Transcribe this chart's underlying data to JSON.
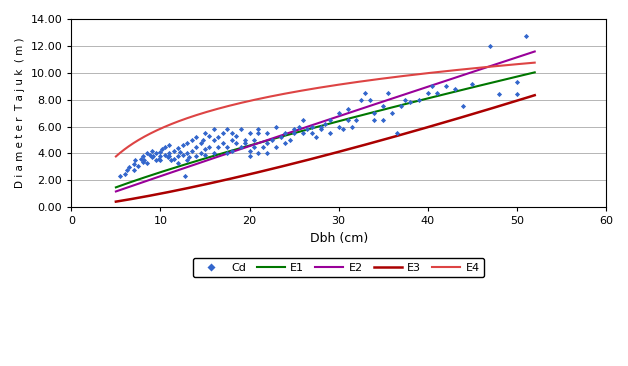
{
  "title": "",
  "xlabel": "Dbh (cm)",
  "ylabel": "D i a m e t e r  T a j u k  ( m )",
  "xlim": [
    0,
    60
  ],
  "ylim": [
    0,
    14
  ],
  "xticks": [
    0,
    10,
    20,
    30,
    40,
    50,
    60
  ],
  "yticks": [
    0.0,
    2.0,
    4.0,
    6.0,
    8.0,
    10.0,
    12.0,
    14.0
  ],
  "scatter_color": "#3366CC",
  "E1_color": "#007700",
  "E2_color": "#990099",
  "E3_color": "#AA0000",
  "E4_color": "#DD4444",
  "background_color": "#FFFFFF",
  "grid_color": "#AAAAAA",
  "scatter_data": [
    [
      5.5,
      2.3
    ],
    [
      6.0,
      2.5
    ],
    [
      6.2,
      2.8
    ],
    [
      6.5,
      3.0
    ],
    [
      7.0,
      3.2
    ],
    [
      7.0,
      2.8
    ],
    [
      7.2,
      3.5
    ],
    [
      7.5,
      3.1
    ],
    [
      7.8,
      3.6
    ],
    [
      8.0,
      3.4
    ],
    [
      8.0,
      3.8
    ],
    [
      8.2,
      3.5
    ],
    [
      8.5,
      3.3
    ],
    [
      8.5,
      4.0
    ],
    [
      8.8,
      3.9
    ],
    [
      9.0,
      3.7
    ],
    [
      9.0,
      4.2
    ],
    [
      9.2,
      3.8
    ],
    [
      9.5,
      4.0
    ],
    [
      9.5,
      3.5
    ],
    [
      9.8,
      3.6
    ],
    [
      10.0,
      3.5
    ],
    [
      10.0,
      4.1
    ],
    [
      10.0,
      3.8
    ],
    [
      10.2,
      4.3
    ],
    [
      10.5,
      3.9
    ],
    [
      10.5,
      4.5
    ],
    [
      10.8,
      3.7
    ],
    [
      11.0,
      3.8
    ],
    [
      11.0,
      4.6
    ],
    [
      11.0,
      4.0
    ],
    [
      11.2,
      3.5
    ],
    [
      11.5,
      4.2
    ],
    [
      11.5,
      3.6
    ],
    [
      12.0,
      3.8
    ],
    [
      12.0,
      4.4
    ],
    [
      12.0,
      3.3
    ],
    [
      12.2,
      4.1
    ],
    [
      12.5,
      3.9
    ],
    [
      12.5,
      4.6
    ],
    [
      12.8,
      2.3
    ],
    [
      13.0,
      4.0
    ],
    [
      13.0,
      3.5
    ],
    [
      13.0,
      4.8
    ],
    [
      13.2,
      3.7
    ],
    [
      13.5,
      4.2
    ],
    [
      13.5,
      5.0
    ],
    [
      14.0,
      3.8
    ],
    [
      14.0,
      4.5
    ],
    [
      14.0,
      5.2
    ],
    [
      14.5,
      4.0
    ],
    [
      14.5,
      4.8
    ],
    [
      14.8,
      5.0
    ],
    [
      15.0,
      4.3
    ],
    [
      15.0,
      5.5
    ],
    [
      15.0,
      3.9
    ],
    [
      15.5,
      4.5
    ],
    [
      15.5,
      5.3
    ],
    [
      16.0,
      4.0
    ],
    [
      16.0,
      5.0
    ],
    [
      16.0,
      5.8
    ],
    [
      16.5,
      4.5
    ],
    [
      16.5,
      5.2
    ],
    [
      17.0,
      4.8
    ],
    [
      17.0,
      5.5
    ],
    [
      17.5,
      4.0
    ],
    [
      17.5,
      5.8
    ],
    [
      17.5,
      4.5
    ],
    [
      18.0,
      4.2
    ],
    [
      18.0,
      5.0
    ],
    [
      18.0,
      5.5
    ],
    [
      18.5,
      4.8
    ],
    [
      18.5,
      5.3
    ],
    [
      19.0,
      4.5
    ],
    [
      19.0,
      5.8
    ],
    [
      19.5,
      5.0
    ],
    [
      19.5,
      4.8
    ],
    [
      20.0,
      4.2
    ],
    [
      20.0,
      5.5
    ],
    [
      20.0,
      3.8
    ],
    [
      20.5,
      4.5
    ],
    [
      20.5,
      5.0
    ],
    [
      21.0,
      4.0
    ],
    [
      21.0,
      5.5
    ],
    [
      21.0,
      5.8
    ],
    [
      21.5,
      4.5
    ],
    [
      22.0,
      4.8
    ],
    [
      22.0,
      5.5
    ],
    [
      22.0,
      4.0
    ],
    [
      22.5,
      5.0
    ],
    [
      23.0,
      4.5
    ],
    [
      23.0,
      6.0
    ],
    [
      23.5,
      5.2
    ],
    [
      24.0,
      4.8
    ],
    [
      24.0,
      5.5
    ],
    [
      24.5,
      5.0
    ],
    [
      25.0,
      5.5
    ],
    [
      25.0,
      5.8
    ],
    [
      25.5,
      6.0
    ],
    [
      26.0,
      5.5
    ],
    [
      26.0,
      6.5
    ],
    [
      26.5,
      5.8
    ],
    [
      27.0,
      5.5
    ],
    [
      27.0,
      6.0
    ],
    [
      27.5,
      5.2
    ],
    [
      28.0,
      6.0
    ],
    [
      28.0,
      5.8
    ],
    [
      28.5,
      6.2
    ],
    [
      29.0,
      5.5
    ],
    [
      29.0,
      6.5
    ],
    [
      30.0,
      6.0
    ],
    [
      30.0,
      7.0
    ],
    [
      30.5,
      5.8
    ],
    [
      31.0,
      6.5
    ],
    [
      31.0,
      7.3
    ],
    [
      31.5,
      6.0
    ],
    [
      32.0,
      6.5
    ],
    [
      32.5,
      8.0
    ],
    [
      33.0,
      8.5
    ],
    [
      33.5,
      8.0
    ],
    [
      34.0,
      6.5
    ],
    [
      34.0,
      7.0
    ],
    [
      35.0,
      6.5
    ],
    [
      35.0,
      7.5
    ],
    [
      35.5,
      8.5
    ],
    [
      36.0,
      7.0
    ],
    [
      36.5,
      5.5
    ],
    [
      37.0,
      7.5
    ],
    [
      37.5,
      8.0
    ],
    [
      38.0,
      7.8
    ],
    [
      39.0,
      8.0
    ],
    [
      40.0,
      8.5
    ],
    [
      40.5,
      9.0
    ],
    [
      41.0,
      8.5
    ],
    [
      42.0,
      9.0
    ],
    [
      43.0,
      8.8
    ],
    [
      44.0,
      7.5
    ],
    [
      45.0,
      9.2
    ],
    [
      47.0,
      12.0
    ],
    [
      48.0,
      8.4
    ],
    [
      50.0,
      9.3
    ],
    [
      50.0,
      8.4
    ],
    [
      51.0,
      12.7
    ]
  ],
  "E1_params": {
    "type": "power",
    "a": 0.396,
    "b": 0.818
  },
  "E2_params": {
    "type": "power",
    "a": 0.243,
    "b": 0.978
  },
  "E3_params": {
    "type": "power",
    "a": 0.053,
    "b": 1.28
  },
  "E4_params": {
    "type": "log",
    "a": -1.02,
    "b": 2.98
  }
}
